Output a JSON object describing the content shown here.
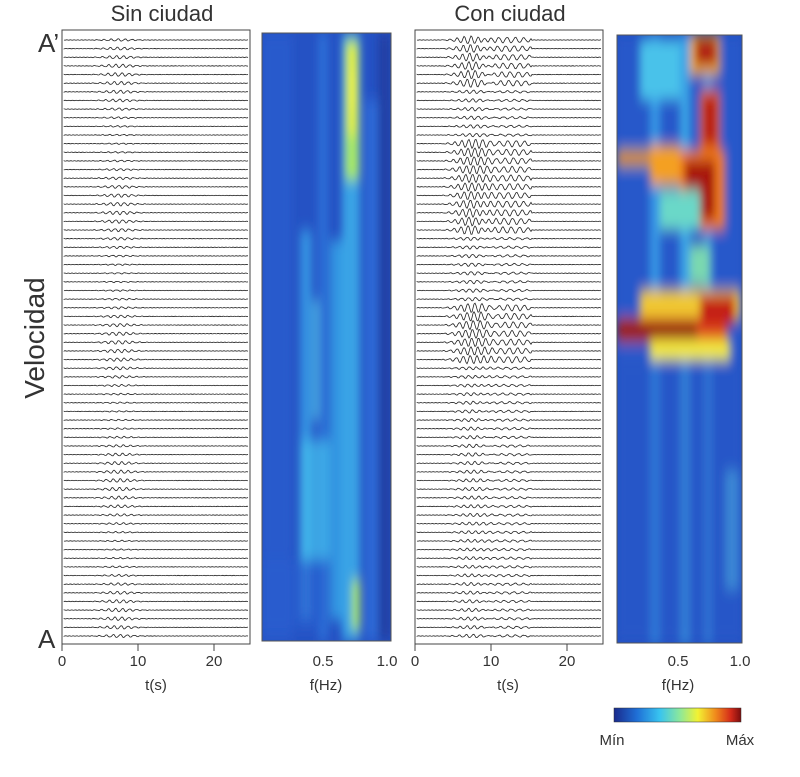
{
  "panels": {
    "left_title": "Sin ciudad",
    "right_title": "Con ciudad"
  },
  "axes": {
    "y_label": "Velocidad",
    "top_station": "A’",
    "bottom_station": "A",
    "time_ticks": [
      "0",
      "10",
      "20"
    ],
    "time_label": "t(s)",
    "freq_ticks": [
      "0.5",
      "1.0"
    ],
    "freq_label": "f(Hz)"
  },
  "colorbar": {
    "min_label": "Mín",
    "max_label": "Máx",
    "colors": [
      "#1a2a8c",
      "#1f6fd6",
      "#38c4f0",
      "#8de89a",
      "#f2f233",
      "#f08a1c",
      "#d42a1a",
      "#7a0d0d"
    ]
  },
  "traces": {
    "count": 70
  }
}
